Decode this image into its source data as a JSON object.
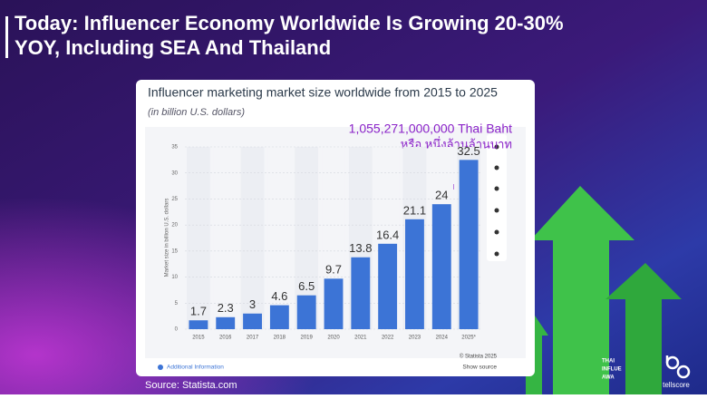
{
  "slide": {
    "title_lines": [
      "Today: Influencer Economy Worldwide Is Growing 20-30%",
      "YOY, Including SEA And Thailand"
    ],
    "source": "Source: Statista.com",
    "brand": "tellscore",
    "award_logo_lines": [
      "THAI",
      "INFLUE",
      "AWA"
    ]
  },
  "chart_data": {
    "type": "bar",
    "title": "Influencer marketing market size worldwide from 2015 to 2025",
    "subtitle": "(in billion U.S. dollars)",
    "y_label": "Market size in billion U.S. dollars",
    "annotations": [
      "1,055,271,000,000 Thai Baht",
      "หรือ หนึ่งล้านล้านบาท"
    ],
    "categories": [
      "2015",
      "2016",
      "2017",
      "2018",
      "2019",
      "2020",
      "2021",
      "2022",
      "2023",
      "2024",
      "2025*"
    ],
    "values": [
      1.7,
      2.3,
      3,
      4.6,
      6.5,
      9.7,
      13.8,
      16.4,
      21.1,
      24,
      32.5
    ],
    "color": "#3c74d6",
    "ylim": [
      0,
      35
    ],
    "yticks": [
      0,
      5,
      10,
      15,
      20,
      25,
      30,
      35
    ],
    "grid": true,
    "copyright": "© Statista 2025",
    "info_link": "Additional Information",
    "source_link": "Show source"
  }
}
